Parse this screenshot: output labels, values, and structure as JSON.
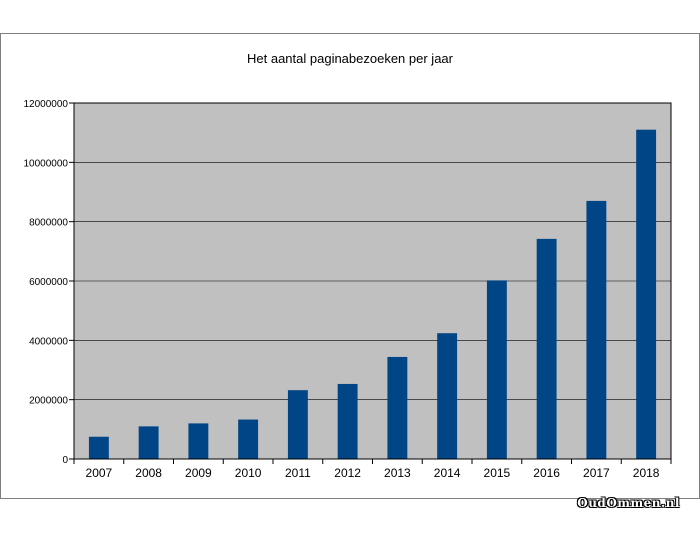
{
  "chart_data": {
    "type": "bar",
    "title": "Het aantal paginabezoeken per jaar",
    "xlabel": "",
    "ylabel": "",
    "categories": [
      "2007",
      "2008",
      "2009",
      "2010",
      "2011",
      "2012",
      "2013",
      "2014",
      "2015",
      "2016",
      "2017",
      "2018"
    ],
    "values": [
      750000,
      1100000,
      1200000,
      1330000,
      2320000,
      2530000,
      3440000,
      4240000,
      6020000,
      7420000,
      8700000,
      11100000
    ],
    "ylim": [
      0,
      12000000
    ],
    "yticks": [
      0,
      2000000,
      4000000,
      6000000,
      8000000,
      10000000,
      12000000
    ],
    "ytick_labels": [
      "0",
      "2000000",
      "4000000",
      "6000000",
      "8000000",
      "10000000",
      "12000000"
    ],
    "grid": true,
    "legend": "none",
    "bar_color": "#004586",
    "plot_bg": "#c0c0c0"
  },
  "watermark": "OudOmmen.nl"
}
